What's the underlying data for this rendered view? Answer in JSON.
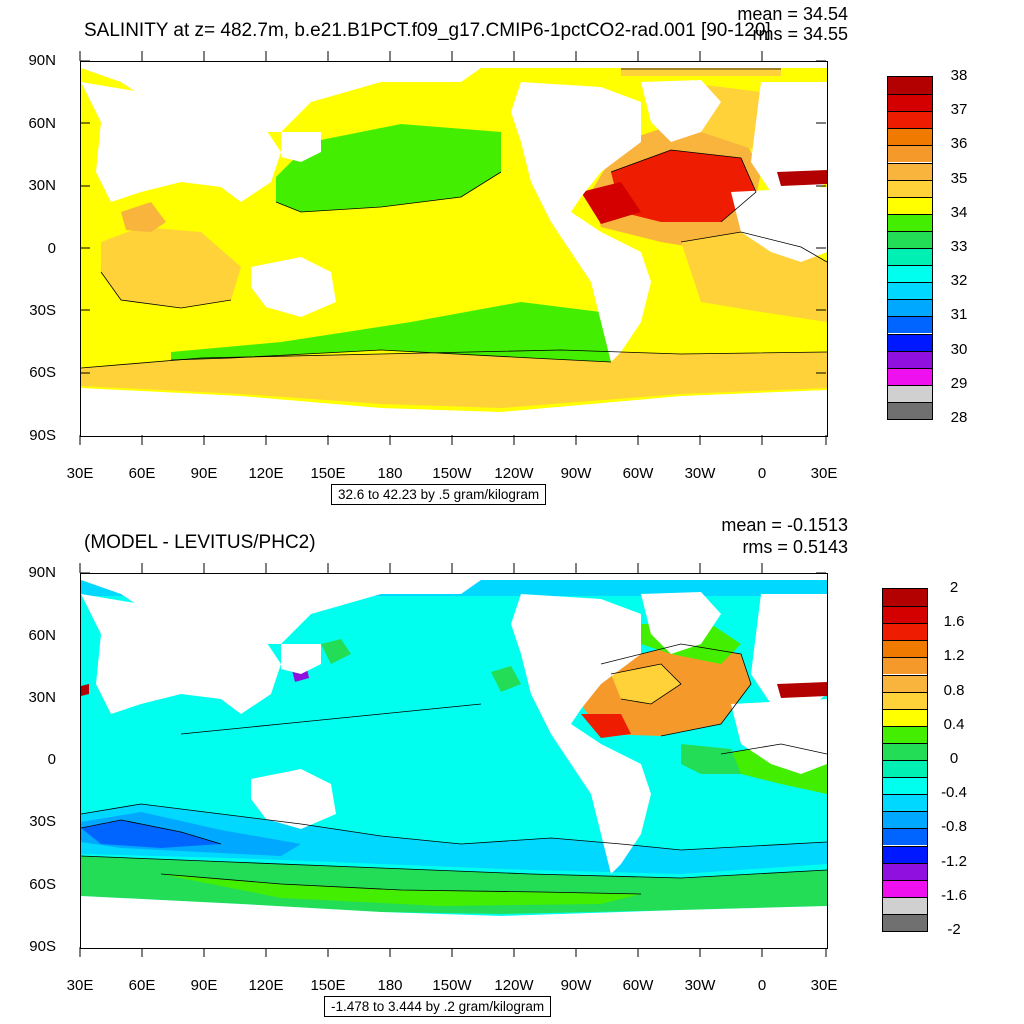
{
  "panels": [
    {
      "title": "SALINITY at z= 482.7m, b.e21.B1PCT.f09_g17.CMIP6-1pctCO2-rad.001 [90-120]",
      "mean": "mean = 34.54",
      "rms": "rms = 34.55",
      "info": "32.6 to 42.23 by .5 gram/kilogram",
      "y_labels": [
        "90N",
        "60N",
        "30N",
        "0",
        "30S",
        "60S",
        "90S"
      ],
      "x_labels": [
        "30E",
        "60E",
        "90E",
        "120E",
        "150E",
        "180",
        "150W",
        "120W",
        "90W",
        "60W",
        "30W",
        "0",
        "30E"
      ],
      "colorbar_labels": [
        "38",
        "37",
        "36",
        "35",
        "34",
        "33",
        "32",
        "31",
        "30",
        "29",
        "28"
      ],
      "colorbar_colors": [
        "#b30000",
        "#d40000",
        "#ee1c00",
        "#f07a00",
        "#f59a2a",
        "#f8b43c",
        "#ffd23a",
        "#ffff00",
        "#44ee00",
        "#22dd55",
        "#00f0b4",
        "#00ffee",
        "#00d8ff",
        "#00a8ff",
        "#0064ff",
        "#0018ff",
        "#9010e0",
        "#ee10ee",
        "#d0d0d0",
        "#707070"
      ]
    },
    {
      "title": "(MODEL - LEVITUS/PHC2)",
      "mean": "mean = -0.1513",
      "rms": "rms = 0.5143",
      "info": "-1.478 to 3.444 by .2 gram/kilogram",
      "y_labels": [
        "90N",
        "60N",
        "30N",
        "0",
        "30S",
        "60S",
        "90S"
      ],
      "x_labels": [
        "30E",
        "60E",
        "90E",
        "120E",
        "150E",
        "180",
        "150W",
        "120W",
        "90W",
        "60W",
        "30W",
        "0",
        "30E"
      ],
      "colorbar_labels": [
        "2",
        "1.6",
        "1.2",
        "0.8",
        "0.4",
        "0",
        "-0.4",
        "-0.8",
        "-1.2",
        "-1.6",
        "-2"
      ],
      "colorbar_colors": [
        "#b30000",
        "#d40000",
        "#ee1c00",
        "#f07a00",
        "#f59a2a",
        "#f8b43c",
        "#ffd23a",
        "#ffff00",
        "#44ee00",
        "#22dd55",
        "#00f0b4",
        "#00ffee",
        "#00d8ff",
        "#00a8ff",
        "#0064ff",
        "#0018ff",
        "#9010e0",
        "#ee10ee",
        "#d0d0d0",
        "#707070"
      ]
    }
  ]
}
